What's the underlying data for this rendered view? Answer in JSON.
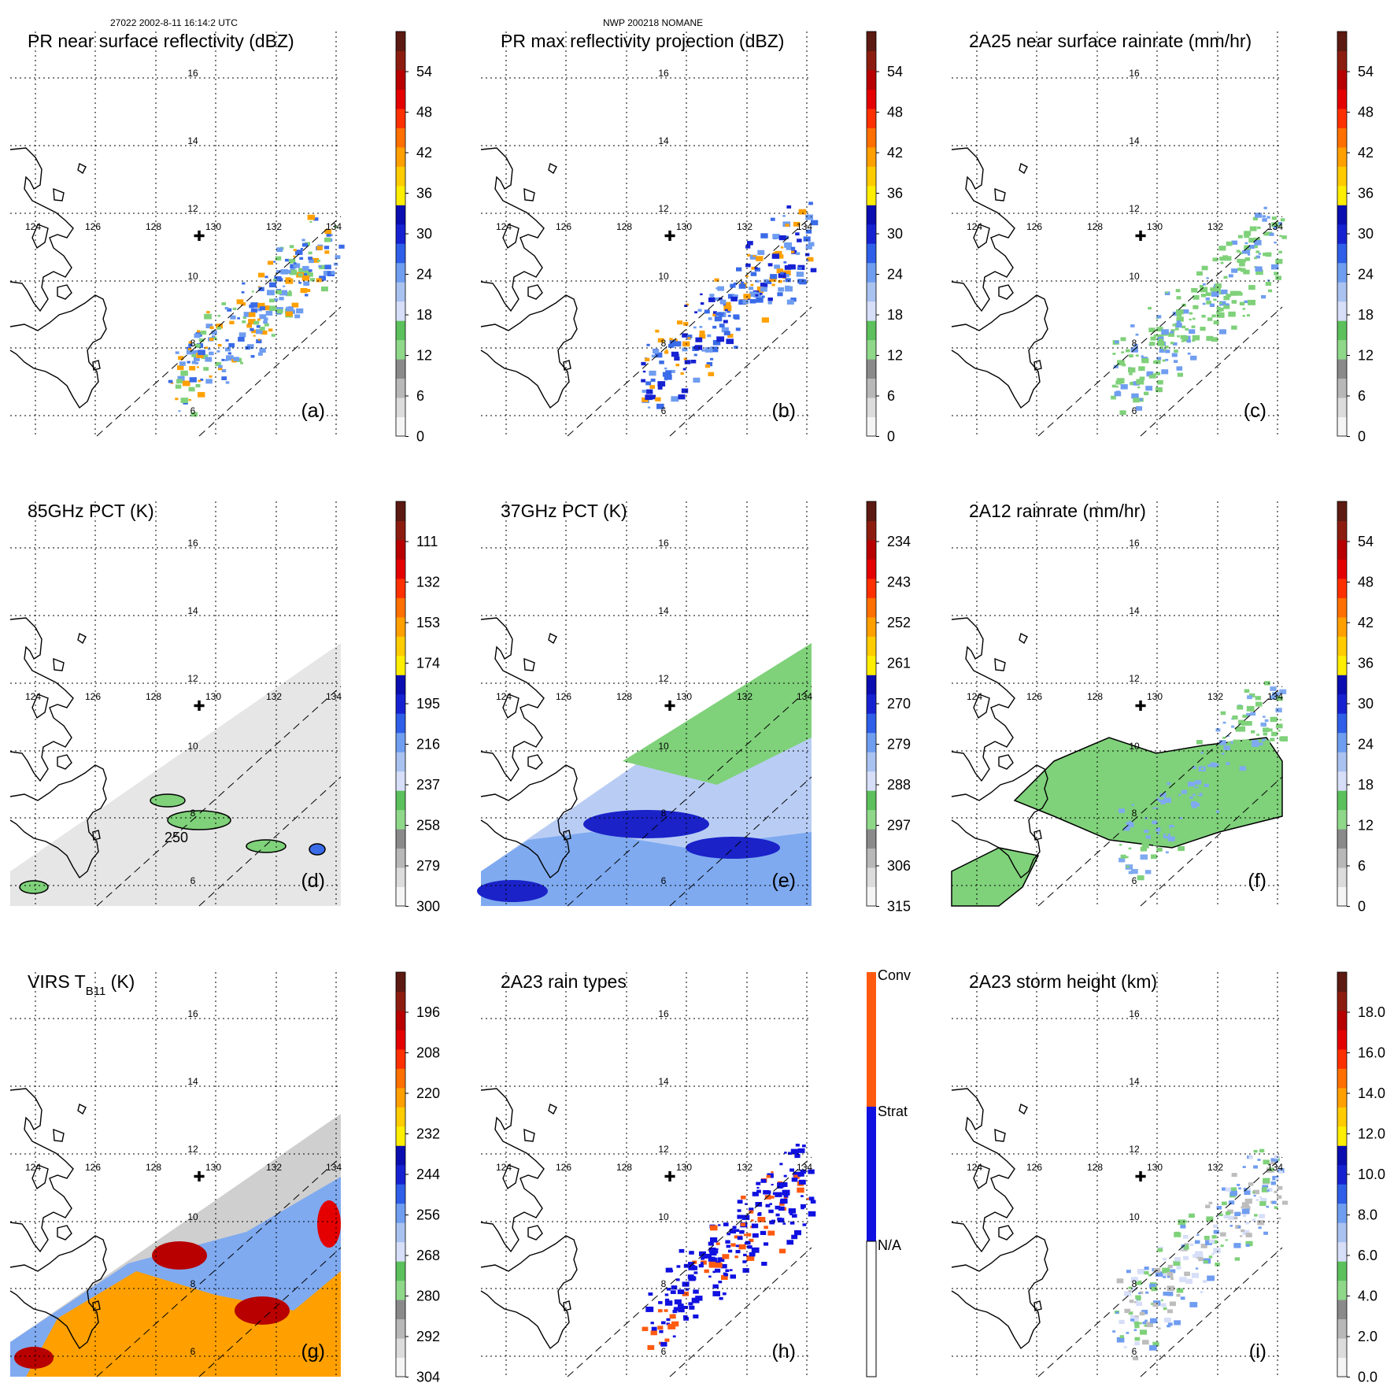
{
  "header": {
    "left": "27022 2002-8-11 16:14:2 UTC",
    "center": "NWP 200218 NOMANE"
  },
  "map": {
    "lon_labels": [
      "124",
      "126",
      "128",
      "130",
      "132",
      "134"
    ],
    "lat_labels": [
      "16",
      "14",
      "12",
      "10",
      "8",
      "6"
    ],
    "storm_marker": "✚"
  },
  "chart_data": [
    {
      "type": "heatmap",
      "id": "a",
      "title": "PR near surface reflectivity (dBZ)",
      "panel_label": "(a)",
      "colorbar": {
        "ticks": [
          "54",
          "48",
          "42",
          "36",
          "30",
          "24",
          "18",
          "12",
          "6",
          "0"
        ],
        "range": [
          0,
          60
        ]
      }
    },
    {
      "type": "heatmap",
      "id": "b",
      "title": "PR max reflectivity projection (dBZ)",
      "panel_label": "(b)",
      "colorbar": {
        "ticks": [
          "54",
          "48",
          "42",
          "36",
          "30",
          "24",
          "18",
          "12",
          "6",
          "0"
        ],
        "range": [
          0,
          60
        ]
      }
    },
    {
      "type": "heatmap",
      "id": "c",
      "title": "2A25 near surface rainrate (mm/hr)",
      "panel_label": "(c)",
      "colorbar": {
        "ticks": [
          "54",
          "48",
          "42",
          "36",
          "30",
          "24",
          "18",
          "12",
          "6",
          "0"
        ],
        "range": [
          0,
          60
        ]
      }
    },
    {
      "type": "heatmap",
      "id": "d",
      "title": "85GHz PCT (K)",
      "panel_label": "(d)",
      "contour_label": "250",
      "colorbar": {
        "ticks": [
          "111",
          "132",
          "153",
          "174",
          "195",
          "216",
          "237",
          "258",
          "279",
          "300"
        ],
        "range": [
          90,
          300
        ]
      }
    },
    {
      "type": "heatmap",
      "id": "e",
      "title": "37GHz PCT (K)",
      "panel_label": "(e)",
      "colorbar": {
        "ticks": [
          "234",
          "243",
          "252",
          "261",
          "270",
          "279",
          "288",
          "297",
          "306",
          "315"
        ],
        "range": [
          225,
          315
        ]
      }
    },
    {
      "type": "heatmap",
      "id": "f",
      "title": "2A12 rainrate (mm/hr)",
      "panel_label": "(f)",
      "colorbar": {
        "ticks": [
          "54",
          "48",
          "42",
          "36",
          "30",
          "24",
          "18",
          "12",
          "6",
          "0"
        ],
        "range": [
          0,
          60
        ]
      }
    },
    {
      "type": "heatmap",
      "id": "g",
      "title": "VIRS T",
      "title_sub": "B11",
      "title_suffix": " (K)",
      "panel_label": "(g)",
      "colorbar": {
        "ticks": [
          "196",
          "208",
          "220",
          "232",
          "244",
          "256",
          "268",
          "280",
          "292",
          "304"
        ],
        "range": [
          184,
          304
        ]
      }
    },
    {
      "type": "heatmap",
      "id": "h",
      "title": "2A23 rain types",
      "panel_label": "(h)",
      "colorbar": {
        "ticks": [
          "Conv",
          "Strat",
          "N/A"
        ],
        "categories": [
          "N/A",
          "Strat",
          "Conv"
        ]
      }
    },
    {
      "type": "heatmap",
      "id": "i",
      "title": "2A23 storm height (km)",
      "panel_label": "(i)",
      "colorbar": {
        "ticks": [
          "18.0",
          "16.0",
          "14.0",
          "12.0",
          "10.0",
          "8.0",
          "6.0",
          "4.0",
          "2.0",
          "0.0"
        ],
        "range": [
          0,
          20
        ]
      }
    }
  ],
  "colors": {
    "rain_scale": [
      "#ffffff",
      "#e0e0e0",
      "#bdbdbd",
      "#9a9a9a",
      "#7fd17a",
      "#5dbd5d",
      "#cfd8f6",
      "#a8c0ee",
      "#6f9ef0",
      "#3a6be8",
      "#1b2fd6",
      "#0b12b8",
      "#ffe800",
      "#ffc000",
      "#ff9a00",
      "#ff6a00",
      "#ff2a00",
      "#e00000",
      "#b00000",
      "#8a1a10",
      "#5a1a12"
    ],
    "rain_type_scale": [
      "#ffffff",
      "#1010e0",
      "#ff5a10"
    ],
    "land_outline": "#000000",
    "grid": "#000000"
  }
}
